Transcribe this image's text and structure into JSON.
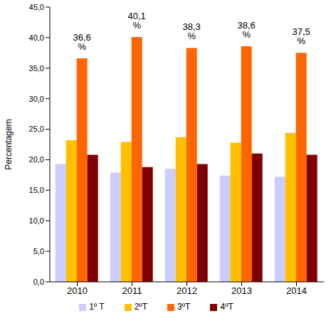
{
  "chart_data": {
    "type": "bar",
    "y_label": "Percentagem",
    "categories": [
      "2010",
      "2011",
      "2012",
      "2013",
      "2014"
    ],
    "series": [
      {
        "name": "1º T",
        "color": "#ccccff",
        "values": [
          19.3,
          17.9,
          18.5,
          17.4,
          17.2
        ]
      },
      {
        "name": "2ºT",
        "color": "#ffc000",
        "values": [
          23.2,
          22.9,
          23.7,
          22.8,
          24.4
        ]
      },
      {
        "name": "3ºT",
        "color": "#ff6600",
        "values": [
          36.6,
          40.1,
          38.3,
          38.6,
          37.5
        ],
        "data_labels": true,
        "value_labels": [
          "36,6 %",
          "40,1 %",
          "38,3 %",
          "38,6 %",
          "37,5 %"
        ]
      },
      {
        "name": "4ºT",
        "color": "#800000",
        "values": [
          20.8,
          18.8,
          19.3,
          21.0,
          20.8
        ]
      }
    ],
    "ylim": [
      0,
      45
    ],
    "yticks": [
      {
        "value": 0,
        "label": "0,0"
      },
      {
        "value": 5,
        "label": "5,0"
      },
      {
        "value": 10,
        "label": "10,0"
      },
      {
        "value": 15,
        "label": "15,0"
      },
      {
        "value": 20,
        "label": "20,0"
      },
      {
        "value": 25,
        "label": "25,0"
      },
      {
        "value": 30,
        "label": "30,0"
      },
      {
        "value": 35,
        "label": "35,0"
      },
      {
        "value": 40,
        "label": "40,0"
      },
      {
        "value": 45,
        "label": "45,0"
      }
    ],
    "grid": false,
    "legend": "bottom"
  }
}
